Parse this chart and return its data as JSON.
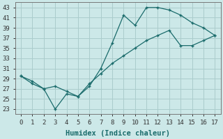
{
  "xlabel": "Humidex (Indice chaleur)",
  "background_color": "#cce8e8",
  "grid_color": "#aacccc",
  "line_color": "#1a6b6b",
  "marker": "+",
  "line1_x": [
    0,
    1,
    2,
    3,
    4,
    5,
    6,
    7,
    8,
    9,
    10,
    11,
    12,
    13,
    14,
    15,
    16,
    17
  ],
  "line1_y": [
    29.5,
    28.0,
    27.0,
    23.0,
    26.0,
    25.5,
    27.5,
    31.0,
    36.0,
    41.5,
    39.5,
    43.0,
    43.0,
    42.5,
    41.5,
    40.0,
    39.0,
    37.5
  ],
  "line2_x": [
    0,
    1,
    2,
    3,
    4,
    5,
    6,
    7,
    8,
    9,
    10,
    11,
    12,
    13,
    14,
    15,
    16,
    17
  ],
  "line2_y": [
    29.5,
    28.5,
    27.0,
    27.5,
    26.5,
    25.5,
    28.0,
    30.0,
    32.0,
    33.5,
    35.0,
    36.5,
    37.5,
    38.5,
    35.5,
    35.5,
    36.5,
    37.5
  ],
  "ylim_min": 22,
  "ylim_max": 44,
  "xlim_min": -0.5,
  "xlim_max": 17.5,
  "yticks": [
    23,
    25,
    27,
    29,
    31,
    33,
    35,
    37,
    39,
    41,
    43
  ],
  "xticks": [
    0,
    1,
    2,
    3,
    4,
    5,
    6,
    7,
    8,
    9,
    10,
    11,
    12,
    13,
    14,
    15,
    16,
    17
  ],
  "tick_fontsize": 6.5,
  "xlabel_fontsize": 7.5
}
